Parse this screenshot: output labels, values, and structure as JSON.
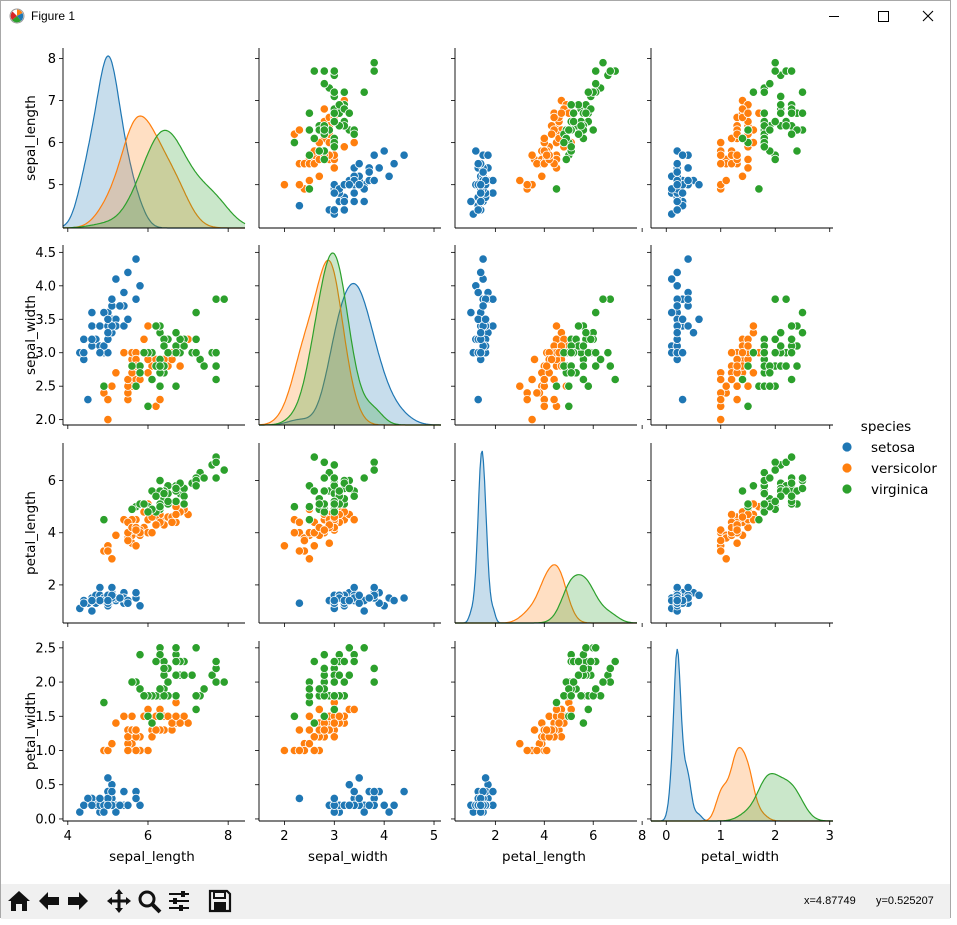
{
  "window": {
    "title": "Figure 1",
    "icons": [
      "matplotlib-icon",
      "minimize-icon",
      "maximize-icon",
      "close-icon"
    ]
  },
  "toolbar": {
    "buttons": [
      "home-icon",
      "back-icon",
      "forward-icon",
      "pan-icon",
      "zoom-icon",
      "configure-subplots-icon",
      "save-icon"
    ],
    "coord_x": "x=4.87749",
    "coord_y": "y=0.525207"
  },
  "chart_data": {
    "type": "pairplot",
    "variables": [
      "sepal_length",
      "sepal_width",
      "petal_length",
      "petal_width"
    ],
    "axis_ticks": {
      "sepal_length": {
        "row": [
          5,
          6,
          7,
          8
        ],
        "row_labels": [
          "5",
          "6",
          "7",
          "8"
        ],
        "col": [
          4,
          6,
          8
        ],
        "col_labels": [
          "4",
          "6",
          "8"
        ]
      },
      "sepal_width": {
        "row": [
          2.0,
          2.5,
          3.0,
          3.5,
          4.0,
          4.5
        ],
        "row_labels": [
          "2.0",
          "2.5",
          "3.0",
          "3.5",
          "4.0",
          "4.5"
        ],
        "col": [
          2,
          3,
          4,
          5
        ],
        "col_labels": [
          "2",
          "3",
          "4",
          "5"
        ]
      },
      "petal_length": {
        "row": [
          2,
          4,
          6
        ],
        "row_labels": [
          "2",
          "4",
          "6"
        ],
        "col": [
          2,
          4,
          6,
          8
        ],
        "col_labels": [
          "2",
          "4",
          "6",
          "8"
        ]
      },
      "petal_width": {
        "row": [
          0.0,
          0.5,
          1.0,
          1.5,
          2.0,
          2.5
        ],
        "row_labels": [
          "0.0",
          "0.5",
          "1.0",
          "1.5",
          "2.0",
          "2.5"
        ],
        "col": [
          0,
          1,
          2,
          3
        ],
        "col_labels": [
          "0",
          "1",
          "2",
          "3"
        ]
      }
    },
    "axis_ranges": {
      "sepal_length": [
        3.88,
        8.42
      ],
      "sepal_width": [
        1.49,
        5.14
      ],
      "petal_length": [
        0.35,
        7.79
      ],
      "petal_width": [
        -0.28,
        3.06
      ]
    },
    "row_ranges": {
      "sepal_length": [
        3.97,
        8.25
      ],
      "sepal_width": [
        1.92,
        4.61
      ],
      "petal_length": [
        0.54,
        7.44
      ],
      "petal_width": [
        -0.03,
        2.6
      ]
    },
    "legend": {
      "title": "species",
      "entries": [
        {
          "label": "setosa",
          "color": "#1f77b4"
        },
        {
          "label": "versicolor",
          "color": "#ff7f0e"
        },
        {
          "label": "virginica",
          "color": "#2ca02c"
        }
      ]
    },
    "kde_bandwidths": {
      "sepal_length": [
        0.21,
        0.31,
        0.38
      ],
      "sepal_width": [
        0.23,
        0.19,
        0.19
      ],
      "petal_length": [
        0.1,
        0.28,
        0.33
      ],
      "petal_width": [
        0.06,
        0.1,
        0.16
      ]
    },
    "series": [
      {
        "name": "setosa",
        "points": [
          [
            5.1,
            3.5,
            1.4,
            0.2
          ],
          [
            4.9,
            3.0,
            1.4,
            0.2
          ],
          [
            4.7,
            3.2,
            1.3,
            0.2
          ],
          [
            4.6,
            3.1,
            1.5,
            0.2
          ],
          [
            5.0,
            3.6,
            1.4,
            0.2
          ],
          [
            5.4,
            3.9,
            1.7,
            0.4
          ],
          [
            4.6,
            3.4,
            1.4,
            0.3
          ],
          [
            5.0,
            3.4,
            1.5,
            0.2
          ],
          [
            4.4,
            2.9,
            1.4,
            0.2
          ],
          [
            4.9,
            3.1,
            1.5,
            0.1
          ],
          [
            5.4,
            3.7,
            1.5,
            0.2
          ],
          [
            4.8,
            3.4,
            1.6,
            0.2
          ],
          [
            4.8,
            3.0,
            1.4,
            0.1
          ],
          [
            4.3,
            3.0,
            1.1,
            0.1
          ],
          [
            5.8,
            4.0,
            1.2,
            0.2
          ],
          [
            5.7,
            4.4,
            1.5,
            0.4
          ],
          [
            5.4,
            3.9,
            1.3,
            0.4
          ],
          [
            5.1,
            3.5,
            1.4,
            0.3
          ],
          [
            5.7,
            3.8,
            1.7,
            0.3
          ],
          [
            5.1,
            3.8,
            1.5,
            0.3
          ],
          [
            5.4,
            3.4,
            1.7,
            0.2
          ],
          [
            5.1,
            3.7,
            1.5,
            0.4
          ],
          [
            4.6,
            3.6,
            1.0,
            0.2
          ],
          [
            5.1,
            3.3,
            1.7,
            0.5
          ],
          [
            4.8,
            3.4,
            1.9,
            0.2
          ],
          [
            5.0,
            3.0,
            1.6,
            0.2
          ],
          [
            5.0,
            3.4,
            1.6,
            0.4
          ],
          [
            5.2,
            3.5,
            1.5,
            0.2
          ],
          [
            5.2,
            3.4,
            1.4,
            0.2
          ],
          [
            4.7,
            3.2,
            1.6,
            0.2
          ],
          [
            4.8,
            3.1,
            1.6,
            0.2
          ],
          [
            5.4,
            3.4,
            1.5,
            0.4
          ],
          [
            5.2,
            4.1,
            1.5,
            0.1
          ],
          [
            5.5,
            4.2,
            1.4,
            0.2
          ],
          [
            4.9,
            3.1,
            1.5,
            0.2
          ],
          [
            5.0,
            3.2,
            1.2,
            0.2
          ],
          [
            5.5,
            3.5,
            1.3,
            0.2
          ],
          [
            4.9,
            3.6,
            1.4,
            0.1
          ],
          [
            4.4,
            3.0,
            1.3,
            0.2
          ],
          [
            5.1,
            3.4,
            1.5,
            0.2
          ],
          [
            5.0,
            3.5,
            1.3,
            0.3
          ],
          [
            4.5,
            2.3,
            1.3,
            0.3
          ],
          [
            4.4,
            3.2,
            1.3,
            0.2
          ],
          [
            5.0,
            3.5,
            1.6,
            0.6
          ],
          [
            5.1,
            3.8,
            1.9,
            0.4
          ],
          [
            4.8,
            3.0,
            1.4,
            0.3
          ],
          [
            5.1,
            3.8,
            1.6,
            0.2
          ],
          [
            4.6,
            3.2,
            1.4,
            0.2
          ],
          [
            5.3,
            3.7,
            1.5,
            0.2
          ],
          [
            5.0,
            3.3,
            1.4,
            0.2
          ]
        ]
      },
      {
        "name": "versicolor",
        "points": [
          [
            7.0,
            3.2,
            4.7,
            1.4
          ],
          [
            6.4,
            3.2,
            4.5,
            1.5
          ],
          [
            6.9,
            3.1,
            4.9,
            1.5
          ],
          [
            5.5,
            2.3,
            4.0,
            1.3
          ],
          [
            6.5,
            2.8,
            4.6,
            1.5
          ],
          [
            5.7,
            2.8,
            4.5,
            1.3
          ],
          [
            6.3,
            3.3,
            4.7,
            1.6
          ],
          [
            4.9,
            2.4,
            3.3,
            1.0
          ],
          [
            6.6,
            2.9,
            4.6,
            1.3
          ],
          [
            5.2,
            2.7,
            3.9,
            1.4
          ],
          [
            5.0,
            2.0,
            3.5,
            1.0
          ],
          [
            5.9,
            3.0,
            4.2,
            1.5
          ],
          [
            6.0,
            2.2,
            4.0,
            1.0
          ],
          [
            6.1,
            2.9,
            4.7,
            1.4
          ],
          [
            5.6,
            2.9,
            3.6,
            1.3
          ],
          [
            6.7,
            3.1,
            4.4,
            1.4
          ],
          [
            5.6,
            3.0,
            4.5,
            1.5
          ],
          [
            5.8,
            2.7,
            4.1,
            1.0
          ],
          [
            6.2,
            2.2,
            4.5,
            1.5
          ],
          [
            5.6,
            2.5,
            3.9,
            1.1
          ],
          [
            5.9,
            3.2,
            4.8,
            1.8
          ],
          [
            6.1,
            2.8,
            4.0,
            1.3
          ],
          [
            6.3,
            2.5,
            4.9,
            1.5
          ],
          [
            6.1,
            2.8,
            4.7,
            1.2
          ],
          [
            6.4,
            2.9,
            4.3,
            1.3
          ],
          [
            6.6,
            3.0,
            4.4,
            1.4
          ],
          [
            6.8,
            2.8,
            4.8,
            1.4
          ],
          [
            6.7,
            3.0,
            5.0,
            1.7
          ],
          [
            6.0,
            2.9,
            4.5,
            1.5
          ],
          [
            5.7,
            2.6,
            3.5,
            1.0
          ],
          [
            5.5,
            2.4,
            3.8,
            1.1
          ],
          [
            5.5,
            2.4,
            3.7,
            1.0
          ],
          [
            5.8,
            2.7,
            3.9,
            1.2
          ],
          [
            6.0,
            2.7,
            5.1,
            1.6
          ],
          [
            5.4,
            3.0,
            4.5,
            1.5
          ],
          [
            6.0,
            3.4,
            4.5,
            1.6
          ],
          [
            6.7,
            3.1,
            4.7,
            1.5
          ],
          [
            6.3,
            2.3,
            4.4,
            1.3
          ],
          [
            5.6,
            3.0,
            4.1,
            1.3
          ],
          [
            5.5,
            2.5,
            4.0,
            1.3
          ],
          [
            5.5,
            2.6,
            4.4,
            1.2
          ],
          [
            6.1,
            3.0,
            4.6,
            1.4
          ],
          [
            5.8,
            2.6,
            4.0,
            1.2
          ],
          [
            5.0,
            2.3,
            3.3,
            1.0
          ],
          [
            5.6,
            2.7,
            4.2,
            1.3
          ],
          [
            5.7,
            3.0,
            4.2,
            1.2
          ],
          [
            5.7,
            2.9,
            4.2,
            1.3
          ],
          [
            6.2,
            2.9,
            4.3,
            1.3
          ],
          [
            5.1,
            2.5,
            3.0,
            1.1
          ],
          [
            5.7,
            2.8,
            4.1,
            1.3
          ]
        ]
      },
      {
        "name": "virginica",
        "points": [
          [
            6.3,
            3.3,
            6.0,
            2.5
          ],
          [
            5.8,
            2.7,
            5.1,
            1.9
          ],
          [
            7.1,
            3.0,
            5.9,
            2.1
          ],
          [
            6.3,
            2.9,
            5.6,
            1.8
          ],
          [
            6.5,
            3.0,
            5.8,
            2.2
          ],
          [
            7.6,
            3.0,
            6.6,
            2.1
          ],
          [
            4.9,
            2.5,
            4.5,
            1.7
          ],
          [
            7.3,
            2.9,
            6.3,
            1.8
          ],
          [
            6.7,
            2.5,
            5.8,
            1.8
          ],
          [
            7.2,
            3.6,
            6.1,
            2.5
          ],
          [
            6.5,
            3.2,
            5.1,
            2.0
          ],
          [
            6.4,
            2.7,
            5.3,
            1.9
          ],
          [
            6.8,
            3.0,
            5.5,
            2.1
          ],
          [
            5.7,
            2.5,
            5.0,
            2.0
          ],
          [
            5.8,
            2.8,
            5.1,
            2.4
          ],
          [
            6.4,
            3.2,
            5.3,
            2.3
          ],
          [
            6.5,
            3.0,
            5.5,
            1.8
          ],
          [
            7.7,
            3.8,
            6.7,
            2.2
          ],
          [
            7.7,
            2.6,
            6.9,
            2.3
          ],
          [
            6.0,
            2.2,
            5.0,
            1.5
          ],
          [
            6.9,
            3.2,
            5.7,
            2.3
          ],
          [
            5.6,
            2.8,
            4.9,
            2.0
          ],
          [
            7.7,
            2.8,
            6.7,
            2.0
          ],
          [
            6.3,
            2.7,
            4.9,
            1.8
          ],
          [
            6.7,
            3.3,
            5.7,
            2.1
          ],
          [
            7.2,
            3.2,
            6.0,
            1.8
          ],
          [
            6.2,
            2.8,
            4.8,
            1.8
          ],
          [
            6.1,
            3.0,
            4.9,
            1.8
          ],
          [
            6.4,
            2.8,
            5.6,
            2.1
          ],
          [
            7.2,
            3.0,
            5.8,
            1.6
          ],
          [
            7.4,
            2.8,
            6.1,
            1.9
          ],
          [
            7.9,
            3.8,
            6.4,
            2.0
          ],
          [
            6.4,
            2.8,
            5.6,
            2.2
          ],
          [
            6.3,
            2.8,
            5.1,
            1.5
          ],
          [
            6.1,
            2.6,
            5.6,
            1.4
          ],
          [
            7.7,
            3.0,
            6.1,
            2.3
          ],
          [
            6.3,
            3.4,
            5.6,
            2.4
          ],
          [
            6.4,
            3.1,
            5.5,
            1.8
          ],
          [
            6.0,
            3.0,
            4.8,
            1.8
          ],
          [
            6.9,
            3.1,
            5.4,
            2.1
          ],
          [
            6.7,
            3.1,
            5.6,
            2.4
          ],
          [
            6.9,
            3.1,
            5.1,
            2.3
          ],
          [
            5.8,
            2.7,
            5.1,
            1.9
          ],
          [
            6.8,
            3.2,
            5.9,
            2.3
          ],
          [
            6.7,
            3.3,
            5.7,
            2.5
          ],
          [
            6.7,
            3.0,
            5.2,
            2.3
          ],
          [
            6.3,
            2.5,
            5.0,
            1.9
          ],
          [
            6.5,
            3.0,
            5.2,
            2.0
          ],
          [
            6.2,
            3.4,
            5.4,
            2.3
          ],
          [
            5.9,
            3.0,
            5.1,
            1.8
          ]
        ]
      }
    ]
  }
}
